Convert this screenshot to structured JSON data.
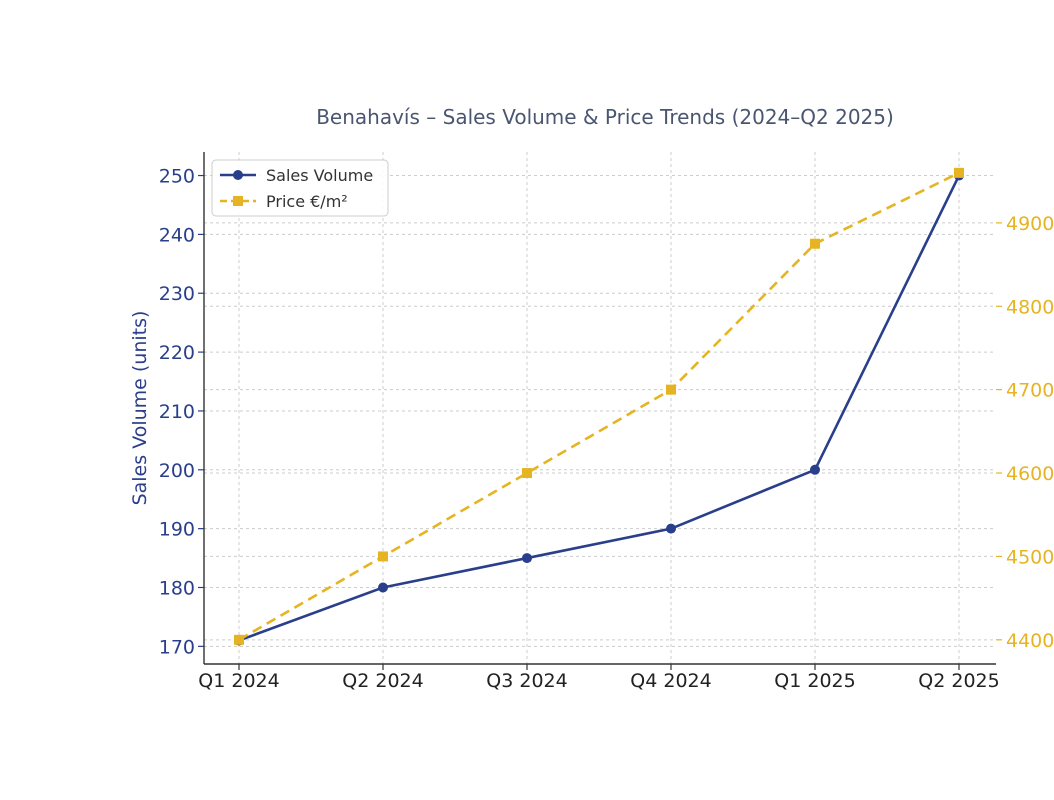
{
  "chart_data": {
    "type": "line",
    "title": "Benahavís – Sales Volume & Price Trends (2024–Q2 2025)",
    "categories": [
      "Q1 2024",
      "Q2 2024",
      "Q3 2024",
      "Q4 2024",
      "Q1 2025",
      "Q2 2025"
    ],
    "ylabel_left": "Sales Volume (units)",
    "ylim_left": [
      167,
      254
    ],
    "yticks_left": [
      170,
      180,
      190,
      200,
      210,
      220,
      230,
      240,
      250
    ],
    "ylim_right": [
      4371,
      4985
    ],
    "yticks_right": [
      4400,
      4500,
      4600,
      4700,
      4800,
      4900
    ],
    "grid": true,
    "legend_position": "top-left",
    "series": [
      {
        "name": "Sales Volume",
        "axis": "left",
        "color": "#2a3f8c",
        "line_style": "solid",
        "marker": "circle",
        "values": [
          171,
          180,
          185,
          190,
          200,
          250
        ]
      },
      {
        "name": "Price €/m²",
        "axis": "right",
        "color": "#e6b422",
        "line_style": "dashed",
        "marker": "square",
        "values": [
          4400,
          4500,
          4600,
          4700,
          4875,
          4960
        ]
      }
    ],
    "colors": {
      "title": "#4a5670",
      "left_axis": "#2a3f8c",
      "right_axis": "#e6b422",
      "grid": "#cccccc",
      "frame": "#333333"
    }
  }
}
